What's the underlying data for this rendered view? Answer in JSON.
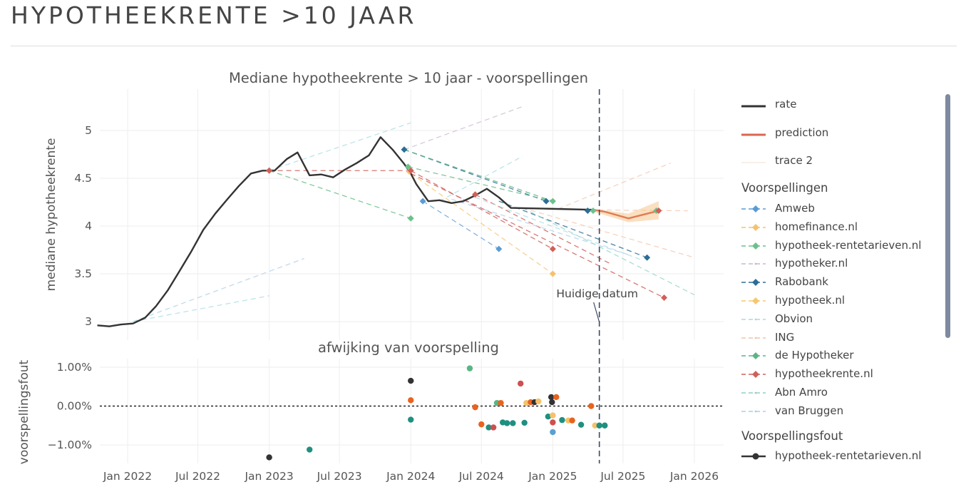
{
  "page": {
    "title": "HYPOTHEEKRENTE >10 JAAR"
  },
  "colors": {
    "rate": "#333333",
    "prediction": "#d9674f",
    "Amweb": "#5b9bd5",
    "homefinance.nl": "#f5c26b",
    "hypotheek-rentetarieven.nl": "#6cc08b",
    "hypotheker.nl": "#c9b8cf",
    "Rabobank": "#2b6e97",
    "hypotheek.nl": "#f7c86b",
    "Obvion": "#a6dbe3",
    "ING": "#f3c4a8",
    "de Hypotheker": "#5ab584",
    "hypotheekrente.nl": "#d0605a",
    "Abn Amro": "#8fd1c7",
    "van Bruggen": "#a8cfe8",
    "err_dark": "#333333",
    "err_orange": "#e8631f",
    "err_teal": "#1f9080",
    "err_red": "#cf4f4f",
    "err_green": "#5ab584",
    "err_blue": "#5aa0d0",
    "err_yellow": "#f5c26b"
  },
  "chart_data": [
    {
      "type": "line",
      "title": "Mediane hypotheekrente > 10 jaar - voorspellingen",
      "ylabel": "mediane hypotheekrente",
      "xlabel": "",
      "ylim": [
        2.8,
        5.35
      ],
      "xlim": [
        "2021-11-15",
        "2026-02-10"
      ],
      "yticks": [
        3,
        3.5,
        4,
        4.5,
        5
      ],
      "ytick_labels": [
        "3",
        "3.5",
        "4",
        "4.5",
        "5"
      ],
      "grid": true,
      "series": [
        {
          "name": "rate",
          "style": "solid",
          "x": [
            "2021-10-15",
            "2021-11-15",
            "2021-12-15",
            "2022-01-15",
            "2022-02-15",
            "2022-03-15",
            "2022-04-15",
            "2022-05-15",
            "2022-06-15",
            "2022-07-15",
            "2022-08-15",
            "2022-09-15",
            "2022-10-15",
            "2022-11-15",
            "2022-12-15",
            "2023-01-15",
            "2023-02-15",
            "2023-03-15",
            "2023-04-15",
            "2023-05-15",
            "2023-06-15",
            "2023-07-15",
            "2023-08-15",
            "2023-09-15",
            "2023-10-15",
            "2023-11-15",
            "2023-12-15",
            "2024-01-01",
            "2024-01-15",
            "2024-02-15",
            "2024-03-15",
            "2024-04-15",
            "2024-05-15",
            "2024-06-15",
            "2024-07-15",
            "2024-08-15",
            "2024-09-15",
            "2025-01-01",
            "2025-04-15"
          ],
          "y": [
            2.96,
            2.95,
            2.97,
            2.98,
            3.04,
            3.16,
            3.33,
            3.53,
            3.74,
            3.96,
            4.13,
            4.28,
            4.42,
            4.55,
            4.58,
            4.58,
            4.7,
            4.77,
            4.53,
            4.54,
            4.51,
            4.59,
            4.66,
            4.74,
            4.93,
            4.8,
            4.65,
            4.55,
            4.44,
            4.26,
            4.27,
            4.24,
            4.26,
            4.32,
            4.39,
            4.3,
            4.19,
            4.18,
            4.17
          ]
        },
        {
          "name": "prediction",
          "style": "solid",
          "x": [
            "2025-04-15",
            "2025-05-15",
            "2025-07-15",
            "2025-10-01"
          ],
          "y": [
            4.17,
            4.15,
            4.08,
            4.16
          ]
        }
      ],
      "forecasts": [
        {
          "source": "hypotheek-rentetarieven.nl",
          "x": [
            "2023-01-01",
            "2024-01-01"
          ],
          "y": [
            4.58,
            4.08
          ]
        },
        {
          "source": "hypotheekrente.nl",
          "x": [
            "2023-01-01",
            "2024-01-01"
          ],
          "y": [
            4.58,
            4.58
          ]
        },
        {
          "source": "Obvion",
          "x": [
            "2023-01-01",
            "2024-01-01"
          ],
          "y": [
            4.58,
            5.08
          ]
        },
        {
          "source": "Rabobank",
          "x": [
            "2023-12-15",
            "2024-12-15"
          ],
          "y": [
            4.8,
            4.26
          ]
        },
        {
          "source": "hypotheker.nl",
          "x": [
            "2023-12-15",
            "2024-10-15"
          ],
          "y": [
            4.8,
            5.25
          ]
        },
        {
          "source": "de Hypotheker",
          "x": [
            "2023-12-15",
            "2025-01-01"
          ],
          "y": [
            4.8,
            4.26
          ]
        },
        {
          "source": "hypotheek-rentetarieven.nl",
          "x": [
            "2023-12-25",
            "2025-01-01"
          ],
          "y": [
            4.62,
            4.26
          ]
        },
        {
          "source": "hypotheekrente.nl",
          "x": [
            "2024-01-01",
            "2025-01-01"
          ],
          "y": [
            4.58,
            3.76
          ]
        },
        {
          "source": "homefinance.nl",
          "x": [
            "2024-01-01",
            "2025-01-01"
          ],
          "y": [
            4.55,
            3.5
          ]
        },
        {
          "source": "hypotheekrente.nl",
          "x": [
            "2024-01-01",
            "2025-10-15"
          ],
          "y": [
            4.55,
            3.25
          ]
        },
        {
          "source": "Amweb",
          "x": [
            "2024-02-01",
            "2024-08-15"
          ],
          "y": [
            4.26,
            3.76
          ]
        },
        {
          "source": "hypotheekrente.nl",
          "x": [
            "2024-06-15",
            "2025-06-01"
          ],
          "y": [
            4.33,
            3.6
          ]
        },
        {
          "source": "Rabobank",
          "x": [
            "2024-08-15",
            "2025-09-01"
          ],
          "y": [
            4.26,
            3.67
          ]
        },
        {
          "source": "Abn Amro",
          "x": [
            "2024-10-15",
            "2026-01-01"
          ],
          "y": [
            4.19,
            3.28
          ]
        },
        {
          "source": "ING",
          "x": [
            "2024-10-15",
            "2026-01-01"
          ],
          "y": [
            4.19,
            3.67
          ]
        },
        {
          "source": "Obvion",
          "x": [
            "2024-03-15",
            "2024-10-15"
          ],
          "y": [
            4.26,
            4.73
          ]
        },
        {
          "source": "van Bruggen",
          "x": [
            "2022-01-15",
            "2023-04-01"
          ],
          "y": [
            3.0,
            3.66
          ]
        },
        {
          "source": "Obvion",
          "x": [
            "2022-01-15",
            "2023-01-01"
          ],
          "y": [
            3.0,
            3.27
          ]
        },
        {
          "source": "ING",
          "x": [
            "2025-01-15",
            "2025-11-01"
          ],
          "y": [
            4.18,
            4.66
          ]
        },
        {
          "source": "ING",
          "x": [
            "2025-03-15",
            "2025-12-15"
          ],
          "y": [
            4.17,
            4.16
          ]
        },
        {
          "source": "van Bruggen",
          "x": [
            "2024-04-15",
            "2025-07-15"
          ],
          "y": [
            4.28,
            3.7
          ]
        },
        {
          "source": "Obvion",
          "x": [
            "2024-06-15",
            "2025-08-15"
          ],
          "y": [
            4.3,
            3.65
          ]
        }
      ],
      "forecast_points": [
        {
          "source": "hypotheek-rentetarieven.nl",
          "x": "2023-01-01",
          "y": 4.58
        },
        {
          "source": "hypotheekrente.nl",
          "x": "2023-01-01",
          "y": 4.58
        },
        {
          "source": "Rabobank",
          "x": "2023-12-15",
          "y": 4.8
        },
        {
          "source": "hypotheek-rentetarieven.nl",
          "x": "2023-12-25",
          "y": 4.62
        },
        {
          "source": "homefinance.nl",
          "x": "2023-12-28",
          "y": 4.57
        },
        {
          "source": "hypotheekrente.nl",
          "x": "2024-01-01",
          "y": 4.58
        },
        {
          "source": "hypotheek-rentetarieven.nl",
          "x": "2024-01-01",
          "y": 4.08
        },
        {
          "source": "Amweb",
          "x": "2024-02-01",
          "y": 4.26
        },
        {
          "source": "hypotheekrente.nl",
          "x": "2024-06-15",
          "y": 4.33
        },
        {
          "source": "Amweb",
          "x": "2024-08-15",
          "y": 3.76
        },
        {
          "source": "Rabobank",
          "x": "2024-12-15",
          "y": 4.26
        },
        {
          "source": "hypotheek-rentetarieven.nl",
          "x": "2025-01-01",
          "y": 4.26
        },
        {
          "source": "hypotheekrente.nl",
          "x": "2025-01-01",
          "y": 3.76
        },
        {
          "source": "homefinance.nl",
          "x": "2025-01-01",
          "y": 3.5
        },
        {
          "source": "Rabobank",
          "x": "2025-04-01",
          "y": 4.16
        },
        {
          "source": "hypotheek-rentetarieven.nl",
          "x": "2025-04-15",
          "y": 4.16
        },
        {
          "source": "hypotheekrente.nl",
          "x": "2025-10-15",
          "y": 3.25
        },
        {
          "source": "Rabobank",
          "x": "2025-09-01",
          "y": 3.67
        },
        {
          "source": "hypotheek-rentetarieven.nl",
          "x": "2025-09-25",
          "y": 4.16
        },
        {
          "source": "hypotheekrente.nl",
          "x": "2025-10-01",
          "y": 4.16
        }
      ],
      "band": {
        "x": [
          "2025-04-15",
          "2025-07-15",
          "2025-10-01"
        ],
        "lo": [
          4.15,
          4.04,
          4.07
        ],
        "hi": [
          4.18,
          4.13,
          4.26
        ]
      },
      "vline": {
        "x": "2025-05-01",
        "label": "Huidige datum"
      }
    },
    {
      "type": "scatter",
      "title": "afwijking van voorspelling",
      "ylabel": "voorspellingsfout",
      "xlabel": "",
      "ylim": [
        -1.35,
        1.22
      ],
      "yticks": [
        1.0,
        0.0,
        -1.0
      ],
      "ytick_labels": [
        "1.00%",
        "0.00%",
        "−1.00%"
      ],
      "xticks": [
        "2022-01-01",
        "2022-07-01",
        "2023-01-01",
        "2023-07-01",
        "2024-01-01",
        "2024-07-01",
        "2025-01-01",
        "2025-07-01",
        "2026-01-01"
      ],
      "xtick_labels": [
        "Jan 2022",
        "Jul 2022",
        "Jan 2023",
        "Jul 2023",
        "Jan 2024",
        "Jul 2024",
        "Jan 2025",
        "Jul 2025",
        "Jan 2026"
      ],
      "zero_line": 0,
      "points": [
        {
          "x": "2023-01-01",
          "y": -1.32,
          "c": "err_dark"
        },
        {
          "x": "2023-04-15",
          "y": -1.12,
          "c": "err_teal"
        },
        {
          "x": "2024-01-01",
          "y": 0.65,
          "c": "err_dark"
        },
        {
          "x": "2024-01-01",
          "y": 0.15,
          "c": "err_orange"
        },
        {
          "x": "2024-01-01",
          "y": -0.35,
          "c": "err_teal"
        },
        {
          "x": "2024-06-01",
          "y": 0.97,
          "c": "err_green"
        },
        {
          "x": "2024-06-15",
          "y": -0.03,
          "c": "err_orange"
        },
        {
          "x": "2024-07-01",
          "y": -0.47,
          "c": "err_orange"
        },
        {
          "x": "2024-07-20",
          "y": -0.55,
          "c": "err_teal"
        },
        {
          "x": "2024-08-01",
          "y": -0.55,
          "c": "err_red"
        },
        {
          "x": "2024-08-10",
          "y": 0.08,
          "c": "err_green"
        },
        {
          "x": "2024-08-20",
          "y": 0.08,
          "c": "err_orange"
        },
        {
          "x": "2024-08-25",
          "y": -0.42,
          "c": "err_teal"
        },
        {
          "x": "2024-09-05",
          "y": -0.44,
          "c": "err_teal"
        },
        {
          "x": "2024-09-20",
          "y": -0.44,
          "c": "err_teal"
        },
        {
          "x": "2024-10-10",
          "y": 0.58,
          "c": "err_red"
        },
        {
          "x": "2024-10-20",
          "y": -0.43,
          "c": "err_teal"
        },
        {
          "x": "2024-10-25",
          "y": 0.08,
          "c": "err_yellow"
        },
        {
          "x": "2024-11-05",
          "y": 0.1,
          "c": "err_orange"
        },
        {
          "x": "2024-11-15",
          "y": 0.1,
          "c": "err_dark"
        },
        {
          "x": "2024-11-25",
          "y": 0.12,
          "c": "err_yellow"
        },
        {
          "x": "2024-12-20",
          "y": -0.27,
          "c": "err_teal"
        },
        {
          "x": "2024-12-28",
          "y": 0.23,
          "c": "err_dark"
        },
        {
          "x": "2024-12-30",
          "y": 0.1,
          "c": "err_dark"
        },
        {
          "x": "2025-01-01",
          "y": -0.42,
          "c": "err_red"
        },
        {
          "x": "2025-01-01",
          "y": -0.24,
          "c": "err_yellow"
        },
        {
          "x": "2025-01-01",
          "y": -0.67,
          "c": "err_blue"
        },
        {
          "x": "2025-01-10",
          "y": 0.23,
          "c": "err_orange"
        },
        {
          "x": "2025-01-25",
          "y": -0.36,
          "c": "err_teal"
        },
        {
          "x": "2025-02-10",
          "y": -0.37,
          "c": "err_yellow"
        },
        {
          "x": "2025-02-20",
          "y": -0.37,
          "c": "err_orange"
        },
        {
          "x": "2025-03-15",
          "y": -0.48,
          "c": "err_teal"
        },
        {
          "x": "2025-04-10",
          "y": 0.0,
          "c": "err_orange"
        },
        {
          "x": "2025-04-20",
          "y": -0.5,
          "c": "err_yellow"
        },
        {
          "x": "2025-05-01",
          "y": -0.5,
          "c": "err_teal"
        },
        {
          "x": "2025-05-15",
          "y": -0.5,
          "c": "err_teal"
        }
      ]
    }
  ],
  "legend": {
    "top": [
      {
        "label": "rate",
        "kind": "solid",
        "color": "rate"
      },
      {
        "label": "prediction",
        "kind": "solid",
        "color": "prediction"
      },
      {
        "label": "trace 2",
        "kind": "faint",
        "color": "ING"
      }
    ],
    "group1_title": "Voorspellingen",
    "group1": [
      {
        "label": "Amweb",
        "color": "Amweb",
        "marker": "diamond"
      },
      {
        "label": "homefinance.nl",
        "color": "homefinance.nl",
        "marker": "diamond"
      },
      {
        "label": "hypotheek-rentetarieven.nl",
        "color": "hypotheek-rentetarieven.nl",
        "marker": "diamond"
      },
      {
        "label": "hypotheker.nl",
        "color": "hypotheker.nl",
        "marker": "tiny"
      },
      {
        "label": "Rabobank",
        "color": "Rabobank",
        "marker": "diamond"
      },
      {
        "label": "hypotheek.nl",
        "color": "hypotheek.nl",
        "marker": "diamond"
      },
      {
        "label": "Obvion",
        "color": "Obvion",
        "marker": "tiny"
      },
      {
        "label": "ING",
        "color": "ING",
        "marker": "tiny"
      },
      {
        "label": "de Hypotheker",
        "color": "de Hypotheker",
        "marker": "diamond"
      },
      {
        "label": "hypotheekrente.nl",
        "color": "hypotheekrente.nl",
        "marker": "diamond"
      },
      {
        "label": "Abn Amro",
        "color": "Abn Amro",
        "marker": "tiny"
      },
      {
        "label": "van Bruggen",
        "color": "van Bruggen",
        "marker": "tiny"
      }
    ],
    "group2_title": "Voorspellingsfout",
    "group2": [
      {
        "label": "hypotheek-rentetarieven.nl",
        "color": "err_dark",
        "marker": "circle"
      }
    ]
  }
}
